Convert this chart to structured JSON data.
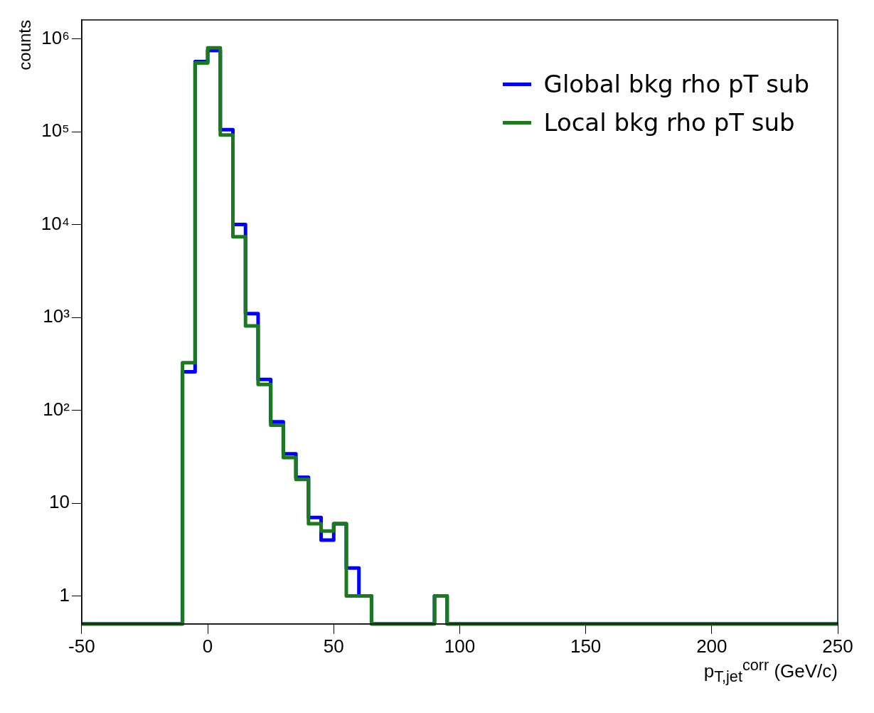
{
  "chart_data": {
    "type": "histogram",
    "xlabel": "p$_{T,jet}$$^{corr}$ (GeV/c)",
    "ylabel": "counts",
    "bins": [
      -50,
      -45,
      -40,
      -35,
      -30,
      -25,
      -20,
      -15,
      -10,
      -5,
      0,
      5,
      10,
      15,
      20,
      25,
      30,
      35,
      40,
      45,
      50,
      55,
      60,
      65,
      70,
      75,
      80,
      85,
      90,
      95,
      100,
      105,
      110,
      115,
      120,
      125,
      130,
      135,
      140,
      145,
      150,
      155,
      160,
      165,
      170,
      175,
      180,
      185,
      190,
      195,
      200,
      205,
      210,
      215,
      220,
      225,
      230,
      235,
      240,
      245,
      250
    ],
    "series": [
      {
        "name": "Global bkg rho pT sub",
        "color": "#0000ff",
        "values": [
          null,
          null,
          null,
          null,
          null,
          null,
          null,
          null,
          260,
          570000,
          750000,
          105000,
          10000,
          1100,
          215,
          75,
          34,
          19,
          7,
          4,
          6,
          2,
          1,
          null,
          null,
          null,
          null,
          null,
          1,
          null,
          null,
          null,
          null,
          null,
          null,
          null,
          null,
          null,
          null,
          null,
          null,
          null,
          null,
          null,
          null,
          null,
          null,
          null,
          null,
          null,
          null,
          null,
          null,
          null,
          null,
          null,
          null,
          null,
          null,
          null
        ]
      },
      {
        "name": "Local bkg rho pT sub",
        "color": "#1b7a1b",
        "values": [
          null,
          null,
          null,
          null,
          null,
          null,
          null,
          null,
          325,
          550000,
          800000,
          92000,
          7400,
          810,
          190,
          69,
          31,
          18,
          6,
          5,
          6,
          1,
          1,
          null,
          null,
          null,
          null,
          null,
          1,
          null,
          null,
          null,
          null,
          null,
          null,
          null,
          null,
          null,
          null,
          null,
          null,
          null,
          null,
          null,
          null,
          null,
          null,
          null,
          null,
          null,
          null,
          null,
          null,
          null,
          null,
          null,
          null,
          null,
          null,
          null
        ]
      }
    ],
    "xlim": [
      -50,
      250
    ],
    "xticks": [
      -50,
      0,
      50,
      100,
      150,
      200,
      250
    ],
    "ylim": [
      0.5,
      1600000
    ],
    "log": true,
    "yticks": [
      1,
      10,
      {
        "value": 100,
        "label": "10²"
      },
      {
        "value": 1000,
        "label": "10³"
      },
      {
        "value": 10000,
        "label": "10⁴"
      },
      {
        "value": 100000,
        "label": "10⁵"
      },
      {
        "value": 1000000,
        "label": "10⁶"
      }
    ],
    "grid": false,
    "legend": "top right"
  }
}
